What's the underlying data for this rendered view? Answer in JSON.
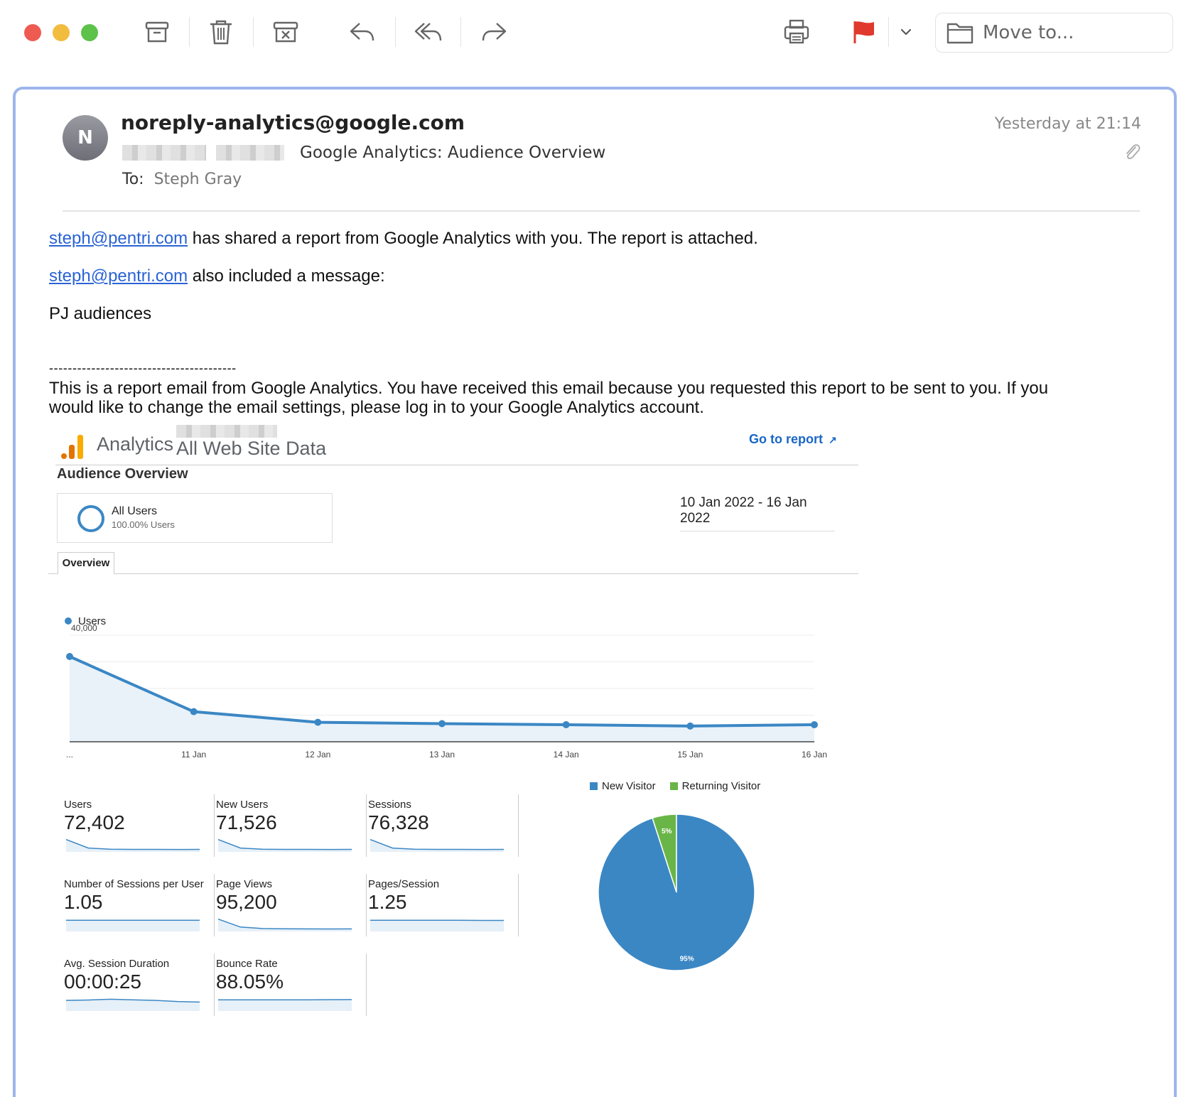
{
  "toolbar": {
    "move_to_label": "Move to..."
  },
  "message": {
    "avatar_initial": "N",
    "from": "noreply-analytics@google.com",
    "subject": "Google Analytics: Audience Overview",
    "to_label": "To:",
    "to_value": "Steph Gray",
    "date": "Yesterday at 21:14"
  },
  "body": {
    "line1_link": "steph@pentri.com",
    "line1_rest": " has shared a report from Google Analytics with you. The report is attached.",
    "line2_link": "steph@pentri.com",
    "line2_rest": " also included a message:",
    "line3": "PJ audiences",
    "divider": "----------------------------------------",
    "notice": "This is a report email from Google Analytics. You have received this email because you requested this report to be sent to you. If you would like to change the email settings, please log in to your Google Analytics account."
  },
  "report": {
    "brand": "Analytics",
    "site": "All Web Site Data",
    "go_to_report": "Go to report",
    "title": "Audience Overview",
    "segment_name": "All Users",
    "segment_pct": "100.00% Users",
    "date_range": "10 Jan 2022 - 16 Jan 2022",
    "tab": "Overview",
    "metrics": [
      {
        "label": "Users",
        "value": "72,402"
      },
      {
        "label": "New Users",
        "value": "71,526"
      },
      {
        "label": "Sessions",
        "value": "76,328"
      },
      {
        "label": "Number of Sessions per User",
        "value": "1.05"
      },
      {
        "label": "Page Views",
        "value": "95,200"
      },
      {
        "label": "Pages/Session",
        "value": "1.25"
      },
      {
        "label": "Avg. Session Duration",
        "value": "00:00:25"
      },
      {
        "label": "Bounce Rate",
        "value": "88.05%"
      }
    ]
  },
  "colors": {
    "accent_blue": "#3b87c4",
    "green": "#6ab547",
    "link": "#2a63d4",
    "flag_red": "#e0392d"
  },
  "chart_data": [
    {
      "type": "area",
      "legend": [
        "Users"
      ],
      "categories": [
        "...",
        "11 Jan",
        "12 Jan",
        "13 Jan",
        "14 Jan",
        "15 Jan",
        "16 Jan"
      ],
      "series": [
        {
          "name": "Users",
          "values": [
            32000,
            11300,
            7300,
            6800,
            6400,
            5900,
            6400
          ]
        }
      ],
      "y_ticks": [
        "40,000",
        "20,000"
      ],
      "ylim": [
        0,
        40000
      ],
      "grid": true
    },
    {
      "type": "pie",
      "labels": [
        "New Visitor",
        "Returning Visitor"
      ],
      "values": [
        95,
        5
      ],
      "value_labels": [
        "95%",
        "5%"
      ]
    }
  ]
}
